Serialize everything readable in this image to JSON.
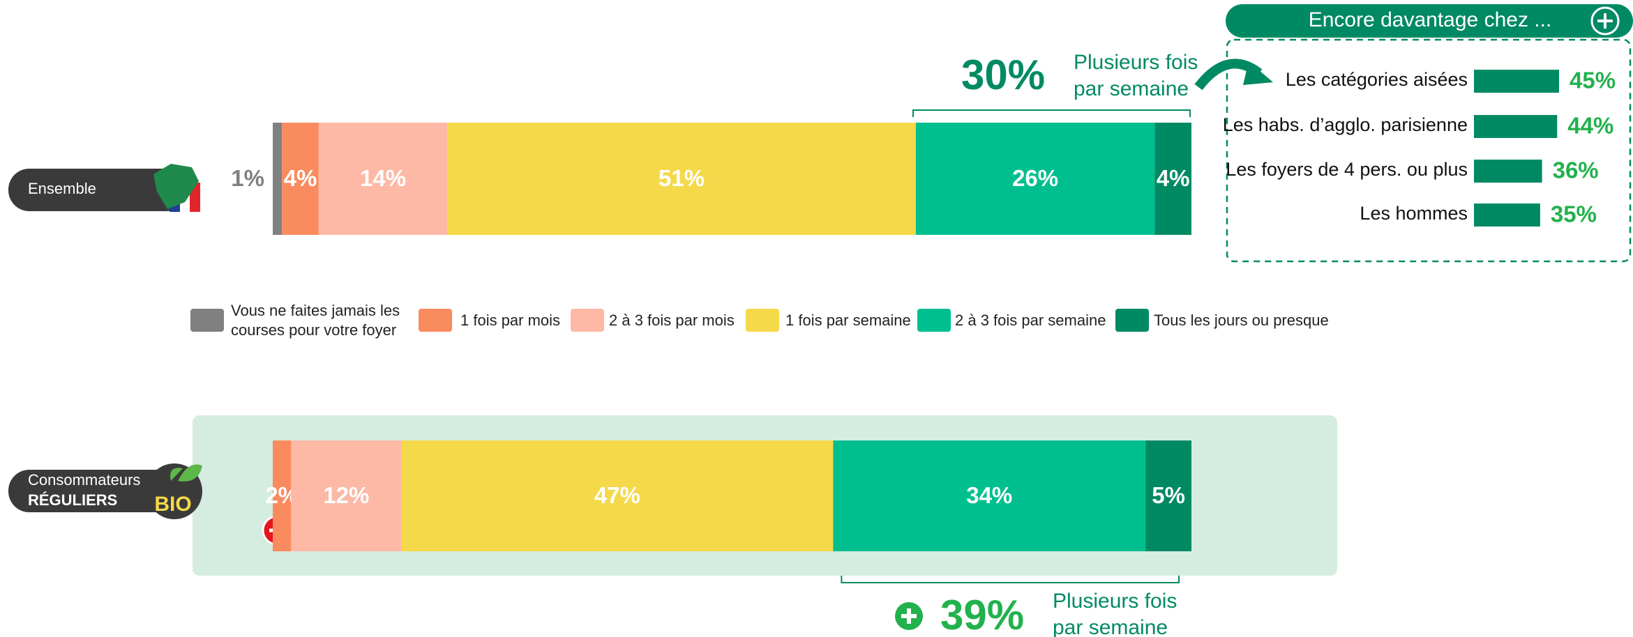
{
  "chart_data": [
    {
      "type": "stacked_bar",
      "categories": [
        [
          "Ensemble"
        ],
        [
          "Consommateurs",
          "RÉGULIERS"
        ]
      ],
      "badge": "BIO",
      "series": [
        {
          "name": "Vous ne faites jamais les courses pour votre foyer",
          "color": "#808080",
          "values": [
            1,
            0
          ],
          "value_labels": [
            "1%",
            null
          ]
        },
        {
          "name": "1 fois par mois",
          "color": "#f98b5e",
          "values": [
            4,
            2
          ],
          "value_labels": [
            "4%",
            "2%"
          ]
        },
        {
          "name": "2 à 3 fois par mois",
          "color": "#fdb8a6",
          "values": [
            14,
            12
          ],
          "value_labels": [
            "14%",
            "12%"
          ]
        },
        {
          "name": "1 fois par semaine",
          "color": "#f5d94a",
          "values": [
            51,
            47
          ],
          "value_labels": [
            "51%",
            "47%"
          ]
        },
        {
          "name": "2 à 3 fois par semaine",
          "color": "#00bf8f",
          "values": [
            26,
            34
          ],
          "value_labels": [
            "26%",
            "34%"
          ]
        },
        {
          "name": "Tous les jours ou presque",
          "color": "#008a63",
          "values": [
            4,
            5
          ],
          "value_labels": [
            "4%",
            "5%"
          ]
        }
      ],
      "annotations": [
        {
          "value": 30,
          "label": "30%",
          "text": "Plusieurs fois par semaine"
        },
        {
          "value": 39,
          "label": "39%",
          "text": "Plusieurs fois par semaine"
        }
      ]
    },
    {
      "type": "bar",
      "title": "Encore davantage chez ...",
      "categories": [
        "Les catégories aisées",
        "Les habs. d’agglo. parisienne",
        "Les foyers de 4 pers. ou plus",
        "Les hommes"
      ],
      "values": [
        45,
        44,
        36,
        35
      ],
      "value_labels": [
        "45%",
        "44%",
        "36%",
        "35%"
      ],
      "color": "#008a63"
    }
  ]
}
